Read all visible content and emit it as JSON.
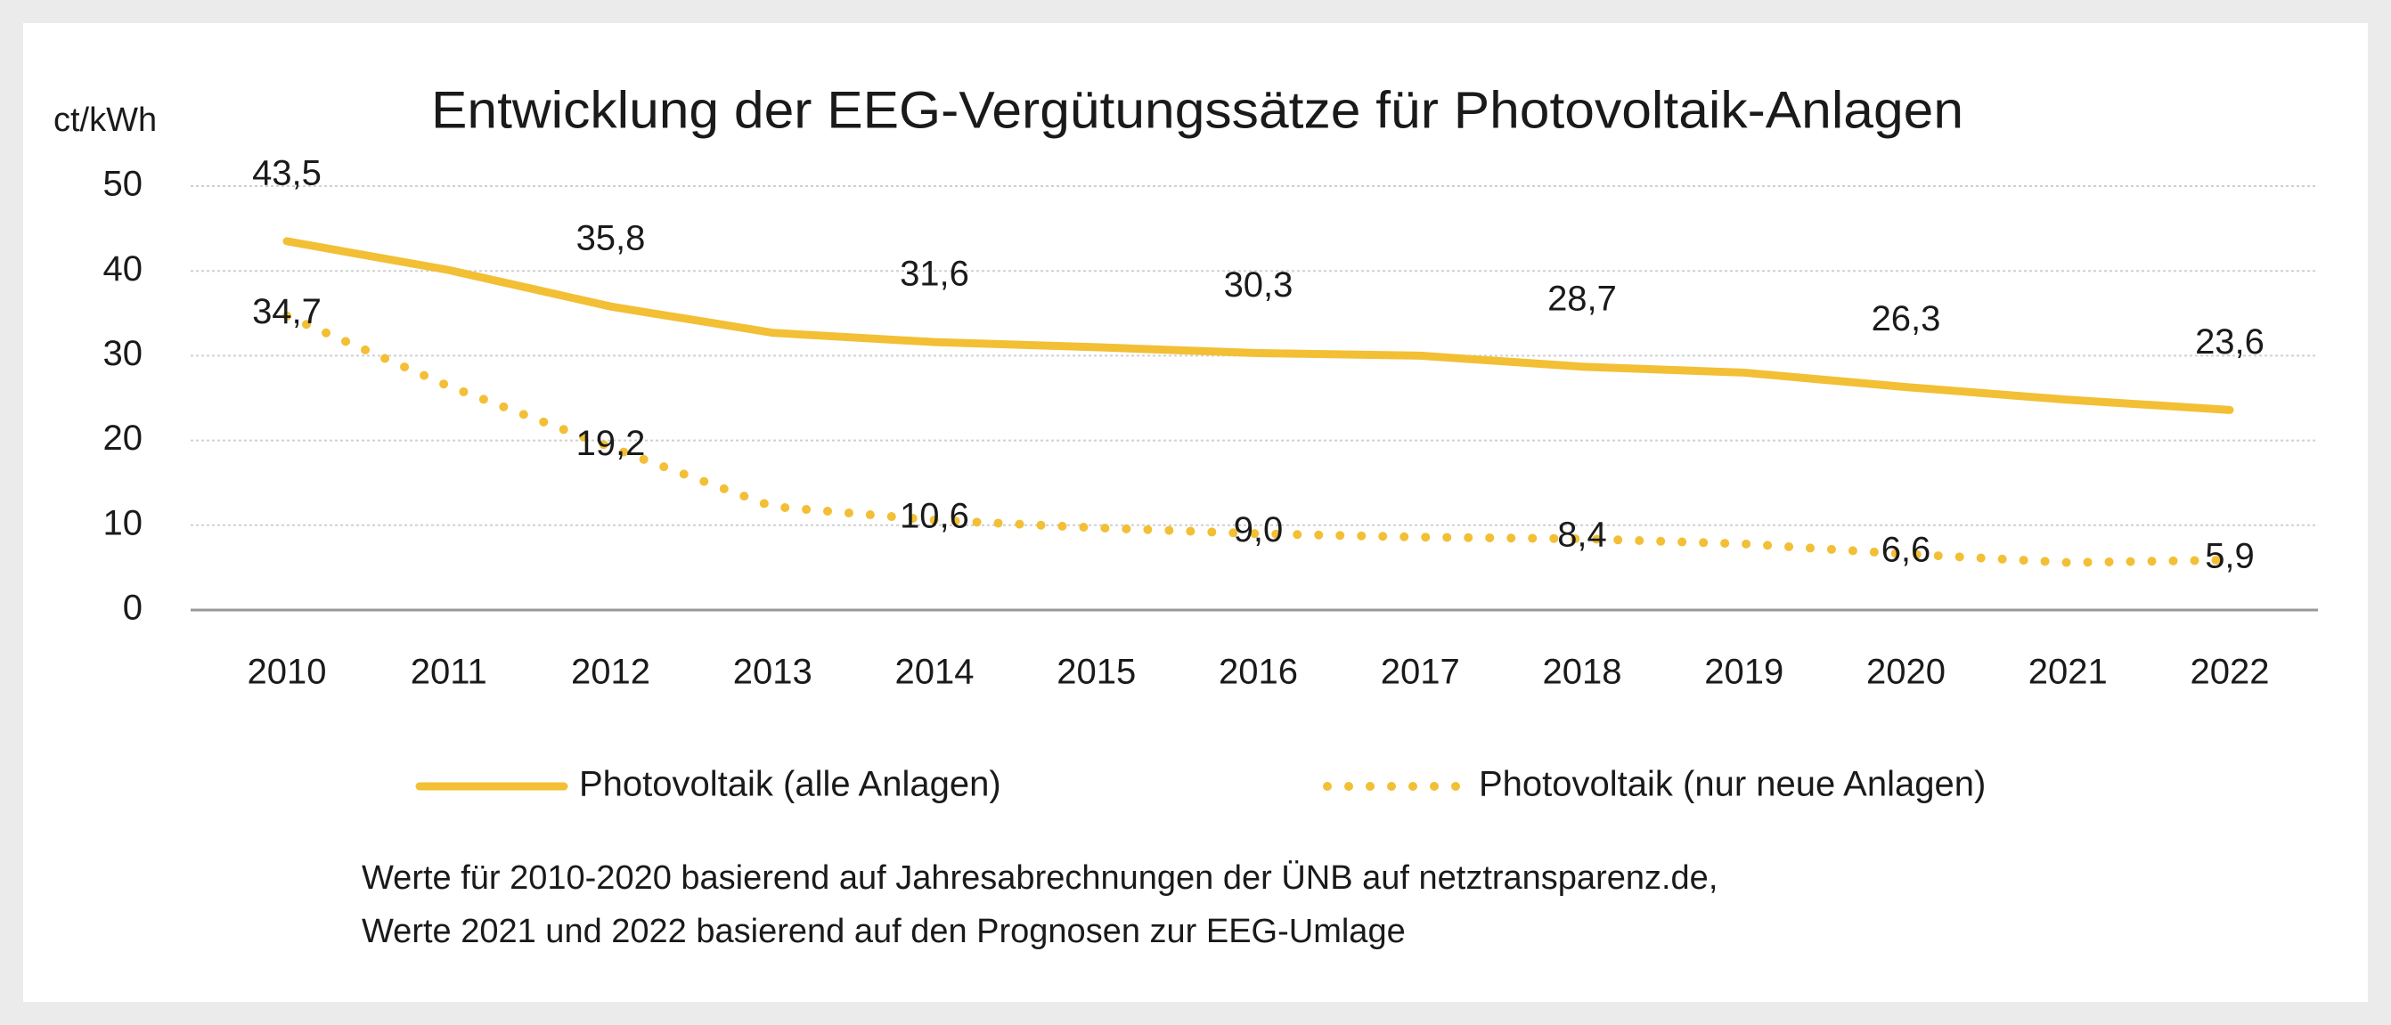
{
  "chart_data": {
    "type": "line",
    "title": "Entwicklung der EEG-Vergütungssätze  für Photovoltaik-Anlagen",
    "y_axis_label": "ct/kWh",
    "categories": [
      "2010",
      "2011",
      "2012",
      "2013",
      "2014",
      "2015",
      "2016",
      "2017",
      "2018",
      "2019",
      "2020",
      "2021",
      "2022"
    ],
    "series": [
      {
        "name": "Photovoltaik (alle Anlagen)",
        "color": "#f2bf35",
        "style": "solid",
        "values": [
          43.5,
          40.1,
          35.8,
          32.7,
          31.6,
          31.0,
          30.3,
          30.0,
          28.7,
          28.0,
          26.3,
          24.8,
          23.6
        ],
        "value_labels": [
          "43,5",
          null,
          "35,8",
          null,
          "31,6",
          null,
          "30,3",
          null,
          "28,7",
          null,
          "26,3",
          null,
          "23,6"
        ]
      },
      {
        "name": "Photovoltaik (nur neue Anlagen)",
        "color": "#f2bf35",
        "style": "dotted",
        "values": [
          34.7,
          26.4,
          19.2,
          12.2,
          10.6,
          9.7,
          9.0,
          8.6,
          8.4,
          7.8,
          6.6,
          5.6,
          5.9
        ],
        "value_labels": [
          "34,7",
          null,
          "19,2",
          null,
          "10,6",
          null,
          "9,0",
          null,
          "8,4",
          null,
          "6,6",
          null,
          "5,9"
        ]
      }
    ],
    "ylim": [
      0,
      50
    ],
    "yticks": [
      0,
      10,
      20,
      30,
      40,
      50
    ],
    "grid": true,
    "legend": "bottom",
    "notes": [
      "Werte für 2010-2020 basierend auf Jahresabrechnungen  der ÜNB auf netztransparenz.de,",
      "Werte 2021 und 2022 basierend auf den Prognosen zur EEG-Umlage"
    ]
  }
}
